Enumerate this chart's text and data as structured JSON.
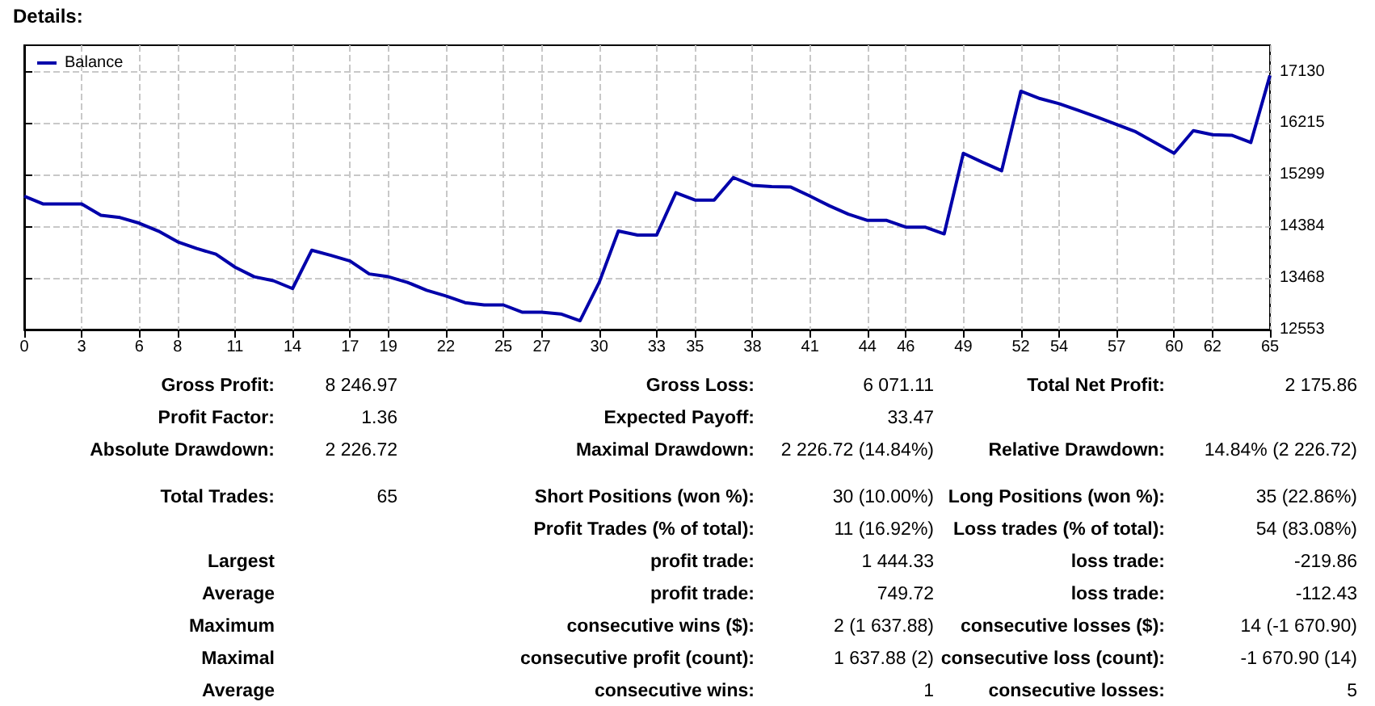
{
  "chart_data": {
    "type": "line",
    "title": "Details:",
    "x": [
      0,
      1,
      2,
      3,
      4,
      5,
      6,
      7,
      8,
      9,
      10,
      11,
      12,
      13,
      14,
      15,
      16,
      17,
      18,
      19,
      20,
      21,
      22,
      23,
      24,
      25,
      26,
      27,
      28,
      29,
      30,
      31,
      32,
      33,
      34,
      35,
      36,
      37,
      38,
      39,
      40,
      41,
      42,
      43,
      44,
      45,
      46,
      47,
      48,
      49,
      50,
      51,
      52,
      53,
      54,
      55,
      56,
      57,
      58,
      59,
      60,
      61,
      62,
      63,
      64,
      65
    ],
    "series": [
      {
        "name": "Balance",
        "color": "#0000aa",
        "values": [
          14920,
          14780,
          14780,
          14780,
          14580,
          14540,
          14440,
          14300,
          14110,
          13990,
          13890,
          13660,
          13490,
          13420,
          13280,
          13960,
          13870,
          13770,
          13540,
          13490,
          13390,
          13250,
          13150,
          13030,
          12990,
          12990,
          12860,
          12860,
          12830,
          12710,
          13390,
          14300,
          14230,
          14230,
          14980,
          14850,
          14850,
          15250,
          15110,
          15090,
          15080,
          14920,
          14750,
          14600,
          14490,
          14490,
          14370,
          14370,
          14250,
          15680,
          15520,
          15370,
          16780,
          16650,
          16560,
          16440,
          16320,
          16190,
          16060,
          15870,
          15680,
          16080,
          16010,
          16000,
          15870,
          17060
        ]
      }
    ],
    "xlim": [
      0,
      65
    ],
    "xticks": [
      0,
      3,
      6,
      8,
      11,
      14,
      17,
      19,
      22,
      25,
      27,
      30,
      33,
      35,
      38,
      41,
      44,
      46,
      49,
      52,
      54,
      57,
      60,
      62,
      65
    ],
    "ylim": [
      12553,
      17596
    ],
    "yticks": [
      12553,
      13468,
      14384,
      15299,
      16215,
      17130
    ],
    "grid": true,
    "legend": "top left",
    "marker": "none",
    "line_style": "solid",
    "annotations": [
      "Gross Profit:",
      "8 246.97",
      "Gross Loss:",
      "6 071.11",
      "Total Net Profit:",
      "2 175.86",
      "Profit Factor:",
      "1.36",
      "Expected Payoff:",
      "33.47",
      "Absolute Drawdown:",
      "2 226.72",
      "Maximal Drawdown:",
      "2 226.72 (14.84%)",
      "Relative Drawdown:",
      "14.84% (2 226.72)",
      "Total Trades:",
      "65",
      "Short Positions (won %):",
      "30 (10.00%)",
      "Long Positions (won %):",
      "35 (22.86%)",
      "Profit Trades (% of total):",
      "11 (16.92%)",
      "Loss trades (% of total):",
      "54 (83.08%)",
      "Largest",
      "profit trade:",
      "1 444.33",
      "loss trade:",
      "-219.86",
      "Average",
      "profit trade:",
      "749.72",
      "loss trade:",
      "-112.43",
      "Maximum",
      "consecutive wins ($):",
      "2 (1 637.88)",
      "consecutive losses ($):",
      "14 (-1 670.90)",
      "Maximal",
      "consecutive profit (count):",
      "1 637.88 (2)",
      "consecutive loss (count):",
      "-1 670.90 (14)",
      "Average",
      "consecutive wins:",
      "1",
      "consecutive losses:",
      "5"
    ]
  }
}
